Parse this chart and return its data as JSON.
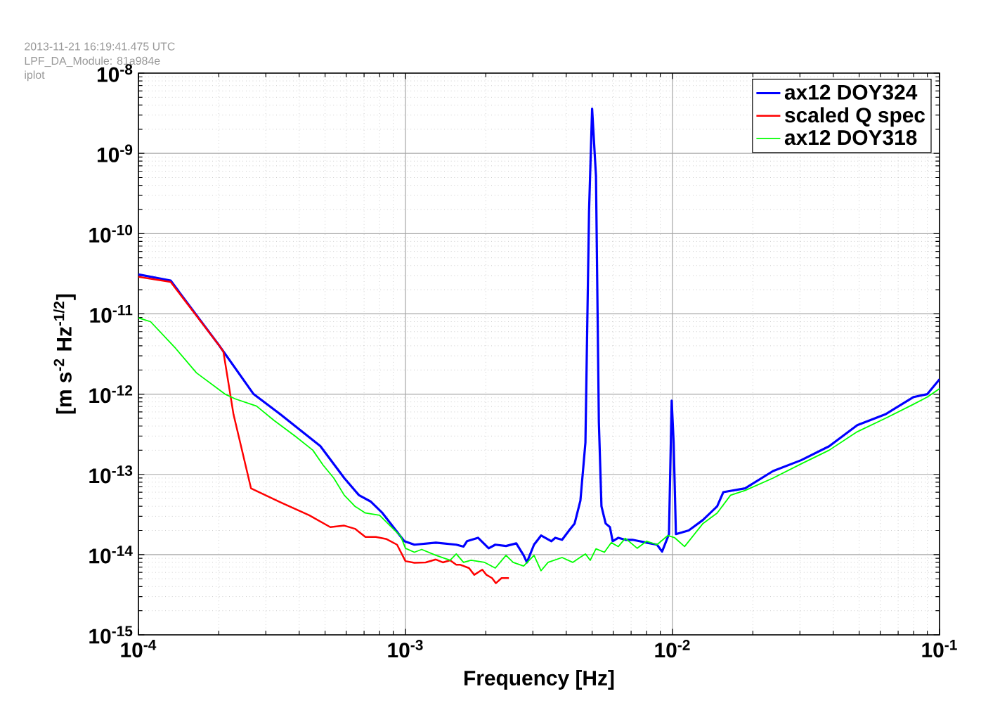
{
  "chart_data": {
    "type": "line",
    "xlabel": "Frequency  [Hz]",
    "ylabel": "[m s$^{-2}$ Hz$^{-1/2}$]",
    "annotations": [
      "2013-11-21 16:19:41.475 UTC",
      "LPF_DA_Module: 81a984e",
      "iplot"
    ],
    "log": "xy",
    "grid": true,
    "legend": "top right",
    "xlim": [
      0.0001,
      0.1
    ],
    "ylim": [
      1e-15,
      1e-08
    ],
    "xticks": [
      {
        "value": 0.0001,
        "label": "10$^{-4}$"
      },
      {
        "value": 0.001,
        "label": "10$^{-3}$"
      },
      {
        "value": 0.01,
        "label": "10$^{-2}$"
      },
      {
        "value": 0.1,
        "label": "10$^{-1}$"
      }
    ],
    "yticks": [
      {
        "value": 1e-15,
        "label": "10$^{-15}$"
      },
      {
        "value": 1e-14,
        "label": "10$^{-14}$"
      },
      {
        "value": 1e-13,
        "label": "10$^{-13}$"
      },
      {
        "value": 1e-12,
        "label": "10$^{-12}$"
      },
      {
        "value": 1e-11,
        "label": "10$^{-11}$"
      },
      {
        "value": 1e-10,
        "label": "10$^{-10}$"
      },
      {
        "value": 1e-09,
        "label": "10$^{-9}$"
      },
      {
        "value": 1e-08,
        "label": "10$^{-8}$"
      }
    ],
    "series": [
      {
        "name": "ax12 DOY324",
        "color": "#0000ff",
        "x": [
          0.0001,
          0.000132,
          0.0002,
          0.00027,
          0.00034,
          0.00048,
          0.00059,
          0.00067,
          0.00074,
          0.00082,
          0.00099,
          0.00108,
          0.0013,
          0.00155,
          0.00165,
          0.0017,
          0.00187,
          0.00205,
          0.00217,
          0.00238,
          0.0026,
          0.00277,
          0.00285,
          0.00303,
          0.00322,
          0.00352,
          0.00364,
          0.00386,
          0.0041,
          0.0043,
          0.00452,
          0.00472,
          0.00487,
          0.005,
          0.00517,
          0.0053,
          0.00542,
          0.00562,
          0.00583,
          0.00597,
          0.00627,
          0.00666,
          0.00708,
          0.00752,
          0.008,
          0.00875,
          0.00914,
          0.0097,
          0.00993,
          0.0101,
          0.0103,
          0.0115,
          0.013,
          0.0147,
          0.0155,
          0.0187,
          0.0238,
          0.0303,
          0.0386,
          0.0492,
          0.0627,
          0.08,
          0.09,
          0.1
        ],
        "values": [
          3.1e-11,
          2.6e-11,
          4.1e-12,
          1e-12,
          5.6e-13,
          2.25e-13,
          9e-14,
          5.5e-14,
          4.6e-14,
          3.3e-14,
          1.47e-14,
          1.33e-14,
          1.41e-14,
          1.33e-14,
          1.26e-14,
          1.47e-14,
          1.62e-14,
          1.2e-14,
          1.33e-14,
          1.28e-14,
          1.38e-14,
          9.8e-15,
          8e-15,
          1.33e-14,
          1.73e-14,
          1.47e-14,
          1.62e-14,
          1.53e-14,
          2e-14,
          2.44e-14,
          4.7e-14,
          2.5e-13,
          1.9e-10,
          3.6e-09,
          5.2e-10,
          4.5e-13,
          4e-14,
          2.44e-14,
          2.2e-14,
          1.47e-14,
          1.62e-14,
          1.53e-14,
          1.53e-14,
          1.47e-14,
          1.41e-14,
          1.33e-14,
          1.09e-14,
          1.8e-14,
          8.3e-13,
          2.5e-13,
          1.8e-14,
          2e-14,
          2.7e-14,
          4e-14,
          6e-14,
          6.7e-14,
          1.1e-13,
          1.5e-13,
          2.24e-13,
          4.1e-13,
          5.6e-13,
          9.2e-13,
          1e-12,
          1.53e-12
        ]
      },
      {
        "name": "scaled Q spec",
        "color": "#ff0000",
        "x": [
          0.0001,
          0.000132,
          0.0002,
          0.000208,
          0.000227,
          0.000264,
          0.00034,
          0.000436,
          0.000523,
          0.00059,
          0.000647,
          0.000708,
          0.000775,
          0.00085,
          0.00093,
          0.001,
          0.00108,
          0.00119,
          0.0013,
          0.00138,
          0.00147,
          0.00155,
          0.0016,
          0.00173,
          0.00181,
          0.00194,
          0.00201,
          0.00211,
          0.00218,
          0.00229,
          0.00244
        ],
        "values": [
          2.9e-11,
          2.5e-11,
          4.1e-12,
          3.4e-12,
          5.6e-13,
          6.7e-14,
          4.5e-14,
          3.1e-14,
          2.2e-14,
          2.3e-14,
          2.1e-14,
          1.66e-14,
          1.66e-14,
          1.56e-14,
          1.33e-14,
          8.3e-15,
          7.9e-15,
          8e-15,
          8.7e-15,
          8e-15,
          8.5e-15,
          7.5e-15,
          7.5e-15,
          6.8e-15,
          5.6e-15,
          6.5e-15,
          5.6e-15,
          5.1e-15,
          4.4e-15,
          5.1e-15,
          5.1e-15
        ]
      },
      {
        "name": "ax12 DOY318",
        "color": "#00ff00",
        "x": [
          0.0001,
          0.000111,
          0.000138,
          0.000165,
          0.000211,
          0.000231,
          0.000277,
          0.000322,
          0.000386,
          0.00045,
          0.000492,
          0.000539,
          0.00059,
          0.000647,
          0.000708,
          0.0008,
          0.000875,
          0.00096,
          0.001,
          0.00108,
          0.00115,
          0.0013,
          0.00147,
          0.00155,
          0.00165,
          0.00176,
          0.00198,
          0.00217,
          0.00238,
          0.00253,
          0.00277,
          0.00303,
          0.00322,
          0.00342,
          0.00386,
          0.00423,
          0.0045,
          0.00472,
          0.00492,
          0.00517,
          0.00556,
          0.0059,
          0.00627,
          0.00666,
          0.00738,
          0.008,
          0.00875,
          0.0096,
          0.0102,
          0.0111,
          0.013,
          0.0147,
          0.0165,
          0.0187,
          0.0238,
          0.0303,
          0.0386,
          0.0492,
          0.0627,
          0.08,
          0.09,
          0.1
        ],
        "values": [
          8.9e-12,
          8e-12,
          3.7e-12,
          1.84e-12,
          1e-12,
          8.7e-13,
          7.1e-13,
          4.7e-13,
          3e-13,
          2e-13,
          1.3e-13,
          9e-14,
          5.5e-14,
          4e-14,
          3.3e-14,
          3.1e-14,
          2.3e-14,
          1.7e-14,
          1.2e-14,
          1.07e-14,
          1.16e-14,
          9.8e-15,
          8.5e-15,
          1.02e-14,
          8e-15,
          8.5e-15,
          8e-15,
          6.8e-15,
          9.8e-15,
          8e-15,
          7.2e-15,
          9.8e-15,
          6.3e-15,
          8e-15,
          9.2e-15,
          8e-15,
          9.2e-15,
          1.02e-14,
          8.5e-15,
          1.18e-14,
          1.07e-14,
          1.41e-14,
          1.26e-14,
          1.6e-14,
          1.2e-14,
          1.47e-14,
          1.33e-14,
          1.73e-14,
          1.62e-14,
          1.26e-14,
          2.44e-14,
          3.3e-14,
          5.5e-14,
          6.3e-14,
          9e-14,
          1.35e-13,
          2e-13,
          3.4e-13,
          5e-13,
          7.5e-13,
          9.2e-13,
          1.17e-12
        ]
      }
    ]
  }
}
